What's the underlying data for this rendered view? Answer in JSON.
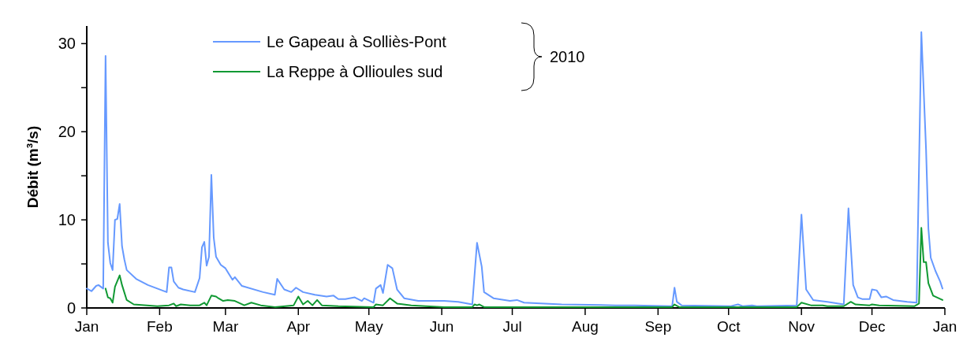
{
  "chart_data": {
    "type": "line",
    "ylabel": "Débit (m³/s)",
    "xlim": [
      "2010-01-01",
      "2011-01-01"
    ],
    "xticks": [
      {
        "value": "2010-01-01",
        "label": "Jan"
      },
      {
        "value": "2010-02-01",
        "label": "Feb"
      },
      {
        "value": "2010-03-01",
        "label": "Mar"
      },
      {
        "value": "2010-04-01",
        "label": "Apr"
      },
      {
        "value": "2010-05-01",
        "label": "May"
      },
      {
        "value": "2010-06-01",
        "label": "Jun"
      },
      {
        "value": "2010-07-01",
        "label": "Jul"
      },
      {
        "value": "2010-08-01",
        "label": "Aug"
      },
      {
        "value": "2010-09-01",
        "label": "Sep"
      },
      {
        "value": "2010-10-01",
        "label": "Oct"
      },
      {
        "value": "2010-11-01",
        "label": "Nov"
      },
      {
        "value": "2010-12-01",
        "label": "Dec"
      },
      {
        "value": "2011-01-01",
        "label": "Jan"
      }
    ],
    "ylim": [
      0,
      32
    ],
    "yticks": [
      0,
      {
        "value": 5,
        "label": null
      },
      10,
      {
        "value": 15,
        "label": null
      },
      20,
      {
        "value": 25,
        "label": null
      },
      30
    ],
    "grid": false,
    "legend": "top left",
    "legend_title": "2010",
    "marker": "none",
    "line_style": "solid",
    "series": [
      {
        "name": "Le Gapeau à Solliès-Pont",
        "color": "#6699ff",
        "x": [
          "2010-01-01",
          "2010-01-03",
          "2010-01-05",
          "2010-01-06",
          "2010-01-08",
          "2010-01-09",
          "2010-01-10",
          "2010-01-11",
          "2010-01-12",
          "2010-01-13",
          "2010-01-14",
          "2010-01-15",
          "2010-01-16",
          "2010-01-17",
          "2010-01-18",
          "2010-01-22",
          "2010-01-27",
          "2010-01-31",
          "2010-02-04",
          "2010-02-05",
          "2010-02-06",
          "2010-02-07",
          "2010-02-09",
          "2010-02-11",
          "2010-02-16",
          "2010-02-18",
          "2010-02-19",
          "2010-02-20",
          "2010-02-21",
          "2010-02-22",
          "2010-02-23",
          "2010-02-24",
          "2010-02-25",
          "2010-02-27",
          "2010-03-01",
          "2010-03-04",
          "2010-03-05",
          "2010-03-08",
          "2010-03-17",
          "2010-03-22",
          "2010-03-23",
          "2010-03-26",
          "2010-03-29",
          "2010-03-31",
          "2010-04-03",
          "2010-04-08",
          "2010-04-13",
          "2010-04-16",
          "2010-04-18",
          "2010-04-21",
          "2010-04-25",
          "2010-04-28",
          "2010-04-29",
          "2010-05-03",
          "2010-05-04",
          "2010-05-06",
          "2010-05-07",
          "2010-05-09",
          "2010-05-11",
          "2010-05-13",
          "2010-05-16",
          "2010-05-22",
          "2010-06-02",
          "2010-06-08",
          "2010-06-14",
          "2010-06-16",
          "2010-06-18",
          "2010-06-19",
          "2010-06-23",
          "2010-06-30",
          "2010-07-03",
          "2010-07-06",
          "2010-07-22",
          "2010-08-14",
          "2010-08-22",
          "2010-09-07",
          "2010-09-08",
          "2010-09-09",
          "2010-09-11",
          "2010-10-02",
          "2010-10-05",
          "2010-10-07",
          "2010-10-11",
          "2010-10-13",
          "2010-10-30",
          "2010-11-01",
          "2010-11-03",
          "2010-11-06",
          "2010-11-12",
          "2010-11-19",
          "2010-11-21",
          "2010-11-23",
          "2010-11-25",
          "2010-11-27",
          "2010-11-30",
          "2010-12-01",
          "2010-12-03",
          "2010-12-05",
          "2010-12-07",
          "2010-12-10",
          "2010-12-16",
          "2010-12-20",
          "2010-12-22",
          "2010-12-24",
          "2010-12-25",
          "2010-12-26",
          "2010-12-28",
          "2010-12-30",
          "2010-12-31"
        ],
        "values": [
          2.2,
          1.9,
          2.5,
          2.6,
          2.2,
          28.6,
          7.4,
          5.1,
          4.3,
          10,
          10.1,
          11.8,
          7,
          5.5,
          4.3,
          3.3,
          2.6,
          2.2,
          1.8,
          4.6,
          4.6,
          3.0,
          2.3,
          2.1,
          1.8,
          3.4,
          6.9,
          7.5,
          4.8,
          5.8,
          15.1,
          8,
          5.8,
          4.9,
          4.5,
          3.2,
          3.5,
          2.5,
          1.8,
          1.5,
          3.3,
          2.1,
          1.8,
          2.3,
          1.8,
          1.5,
          1.3,
          1.4,
          1.0,
          1.0,
          1.2,
          0.8,
          1.1,
          0.6,
          2.2,
          2.6,
          1.7,
          4.9,
          4.5,
          2.1,
          1.1,
          0.8,
          0.8,
          0.7,
          0.4,
          7.4,
          4.7,
          1.8,
          1.1,
          0.8,
          0.9,
          0.6,
          0.4,
          0.3,
          0.3,
          0.2,
          2.3,
          0.7,
          0.3,
          0.2,
          0.4,
          0.2,
          0.3,
          0.2,
          0.3,
          10.6,
          2.1,
          0.9,
          0.7,
          0.4,
          11.3,
          2.6,
          1.2,
          1.0,
          1.0,
          2.1,
          2.0,
          1.2,
          1.3,
          0.9,
          0.7,
          0.6,
          31.3,
          18,
          9,
          5.7,
          4.2,
          3.0,
          2.2
        ]
      },
      {
        "name": "La Reppe à Ollioules sud",
        "color": "#109933",
        "x": [
          "2010-01-09",
          "2010-01-10",
          "2010-01-11",
          "2010-01-12",
          "2010-01-13",
          "2010-01-15",
          "2010-01-16",
          "2010-01-18",
          "2010-01-21",
          "2010-01-31",
          "2010-02-05",
          "2010-02-07",
          "2010-02-08",
          "2010-02-10",
          "2010-02-14",
          "2010-02-18",
          "2010-02-20",
          "2010-02-21",
          "2010-02-23",
          "2010-02-25",
          "2010-02-26",
          "2010-02-28",
          "2010-03-02",
          "2010-03-05",
          "2010-03-09",
          "2010-03-12",
          "2010-03-16",
          "2010-03-22",
          "2010-03-30",
          "2010-04-01",
          "2010-04-03",
          "2010-04-05",
          "2010-04-07",
          "2010-04-09",
          "2010-04-11",
          "2010-04-18",
          "2010-05-03",
          "2010-05-04",
          "2010-05-07",
          "2010-05-10",
          "2010-05-13",
          "2010-05-19",
          "2010-06-02",
          "2010-06-14",
          "2010-06-15",
          "2010-06-16",
          "2010-06-17",
          "2010-06-19",
          "2010-08-14",
          "2010-09-07",
          "2010-09-08",
          "2010-09-10",
          "2010-10-30",
          "2010-11-01",
          "2010-11-05",
          "2010-11-10",
          "2010-11-12",
          "2010-11-19",
          "2010-11-22",
          "2010-11-24",
          "2010-11-30",
          "2010-12-01",
          "2010-12-04",
          "2010-12-19",
          "2010-12-21",
          "2010-12-22",
          "2010-12-23",
          "2010-12-24",
          "2010-12-25",
          "2010-12-27",
          "2010-12-31"
        ],
        "values": [
          2.2,
          1.2,
          1.1,
          0.6,
          2.4,
          3.7,
          2.6,
          0.9,
          0.4,
          0.2,
          0.3,
          0.5,
          0.2,
          0.4,
          0.3,
          0.3,
          0.6,
          0.3,
          1.4,
          1.3,
          1.1,
          0.8,
          0.9,
          0.8,
          0.3,
          0.6,
          0.3,
          0.1,
          0.3,
          1.3,
          0.4,
          0.8,
          0.3,
          0.9,
          0.3,
          0.2,
          0.1,
          0.4,
          0.3,
          1.1,
          0.5,
          0.3,
          0.1,
          0.1,
          0.4,
          0.3,
          0.4,
          0.1,
          0.1,
          0.1,
          0.4,
          0.1,
          0.1,
          0.6,
          0.3,
          0.3,
          0.2,
          0.2,
          0.7,
          0.4,
          0.3,
          0.4,
          0.3,
          0.2,
          0.5,
          9.1,
          5.2,
          5.2,
          2.8,
          1.4,
          0.9
        ]
      }
    ]
  }
}
